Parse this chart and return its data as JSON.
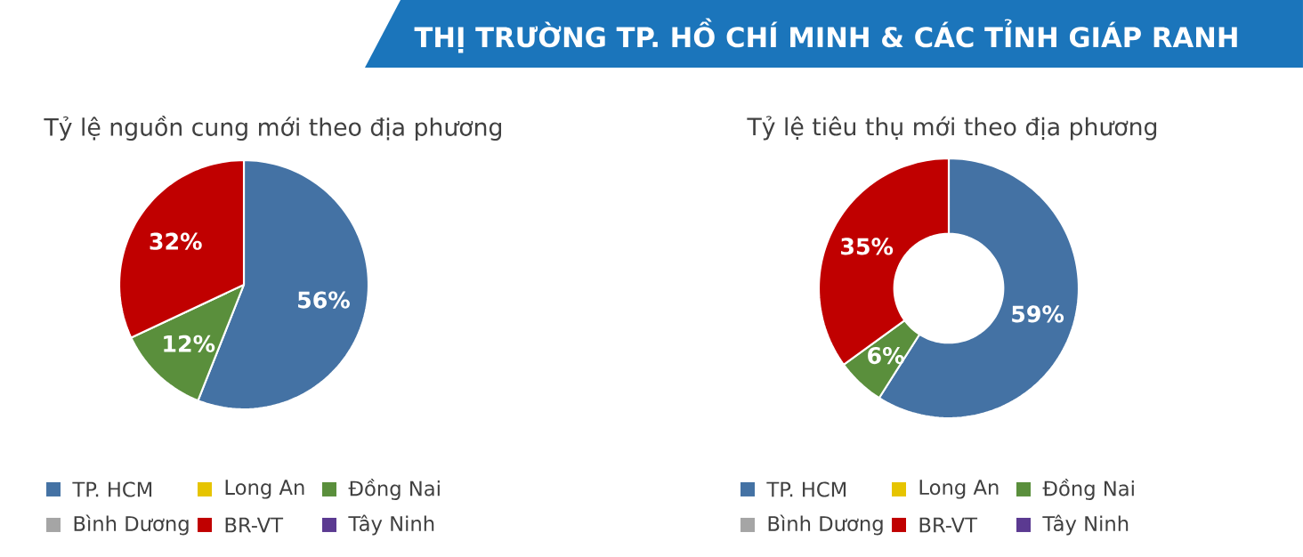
{
  "chart_data": [
    {
      "type": "pie",
      "title": "Tỷ lệ nguồn cung mới theo địa phương",
      "annotations": [
        "THỊ TRƯỜNG TP. HỒ CHÍ MINH & CÁC TỈNH GIÁP RANH"
      ],
      "categories": [
        "TP. HCM",
        "Long An",
        "Đồng Nai",
        "Bình Dương",
        "BR-VT",
        "Tây Ninh"
      ],
      "values": [
        56,
        0,
        12,
        0,
        32,
        0
      ],
      "colors": [
        "#4472a4",
        "#e6c400",
        "#5a8f3c",
        "#a5a5a5",
        "#c00000",
        "#5b3a91"
      ],
      "value_labels": [
        "56%",
        null,
        "12%",
        null,
        "32%",
        null
      ],
      "legend": "bottom"
    },
    {
      "type": "donut",
      "title": "Tỷ lệ tiêu thụ mới theo địa phương",
      "categories": [
        "TP. HCM",
        "Long An",
        "Đồng Nai",
        "Bình Dương",
        "BR-VT",
        "Tây Ninh"
      ],
      "values": [
        59,
        0,
        6,
        0,
        35,
        0
      ],
      "colors": [
        "#4472a4",
        "#e6c400",
        "#5a8f3c",
        "#a5a5a5",
        "#c00000",
        "#5b3a91"
      ],
      "value_labels": [
        "59%",
        null,
        "6%",
        null,
        "35%",
        null
      ],
      "legend": "bottom"
    }
  ]
}
